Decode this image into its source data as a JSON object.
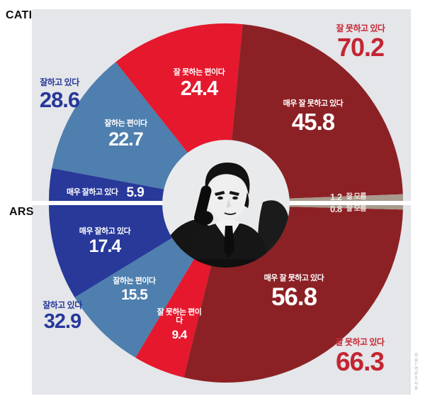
{
  "methods_note": "dual-mode presidential approval poll donut",
  "credit": "자료=여론조사꽃",
  "colors": {
    "panel_bg": "#e4e6e9",
    "center_bg": "#e9eaec",
    "divider": "#ffffff",
    "very_good": "#28399a",
    "good": "#4e7fae",
    "bad": "#e5182d",
    "very_bad": "#8c2125",
    "dont_know": "#a89a8c",
    "positive_text": "#27379a",
    "negative_text": "#c42532"
  },
  "chart_data": {
    "type": "pie",
    "layout": "dual-semicircle-donut",
    "center_image": "president-on-phone-photo",
    "halves": [
      {
        "method": "CATI",
        "position": "top",
        "slices": [
          {
            "label": "매우 잘하고 있다",
            "value": 5.9,
            "color": "#28399a",
            "text_color": "#ffffff"
          },
          {
            "label": "잘하는 편이다",
            "value": 22.7,
            "color": "#4e7fae",
            "text_color": "#ffffff"
          },
          {
            "label": "잘 못하는 편이다",
            "value": 24.4,
            "color": "#e5182d",
            "text_color": "#ffffff"
          },
          {
            "label": "매우 잘 못하고 있다",
            "value": 45.8,
            "color": "#8c2125",
            "text_color": "#ffffff"
          },
          {
            "label": "잘 모름",
            "value": 1.2,
            "color": "#a89a8c",
            "text_color": "#efe9e3"
          }
        ],
        "summary": [
          {
            "label": "잘하고 있다",
            "value": 28.6,
            "color": "#27379a"
          },
          {
            "label": "잘 못하고 있다",
            "value": 70.2,
            "color": "#c42532"
          }
        ]
      },
      {
        "method": "ARS",
        "position": "bottom",
        "slices": [
          {
            "label": "매우 잘하고 있다",
            "value": 17.4,
            "color": "#28399a",
            "text_color": "#ffffff"
          },
          {
            "label": "잘하는 편이다",
            "value": 15.5,
            "color": "#4e7fae",
            "text_color": "#ffffff"
          },
          {
            "label": "잘 못하는 편이다",
            "value": 9.4,
            "color": "#e5182d",
            "text_color": "#ffffff"
          },
          {
            "label": "매우 잘 못하고 있다",
            "value": 56.8,
            "color": "#8c2125",
            "text_color": "#ffffff"
          },
          {
            "label": "잘 모름",
            "value": 0.8,
            "color": "#a89a8c",
            "text_color": "#efe9e3"
          }
        ],
        "summary": [
          {
            "label": "잘하고 있다",
            "value": 32.9,
            "color": "#27379a"
          },
          {
            "label": "잘 못하고 있다",
            "value": 66.3,
            "color": "#c42532"
          }
        ]
      }
    ]
  }
}
